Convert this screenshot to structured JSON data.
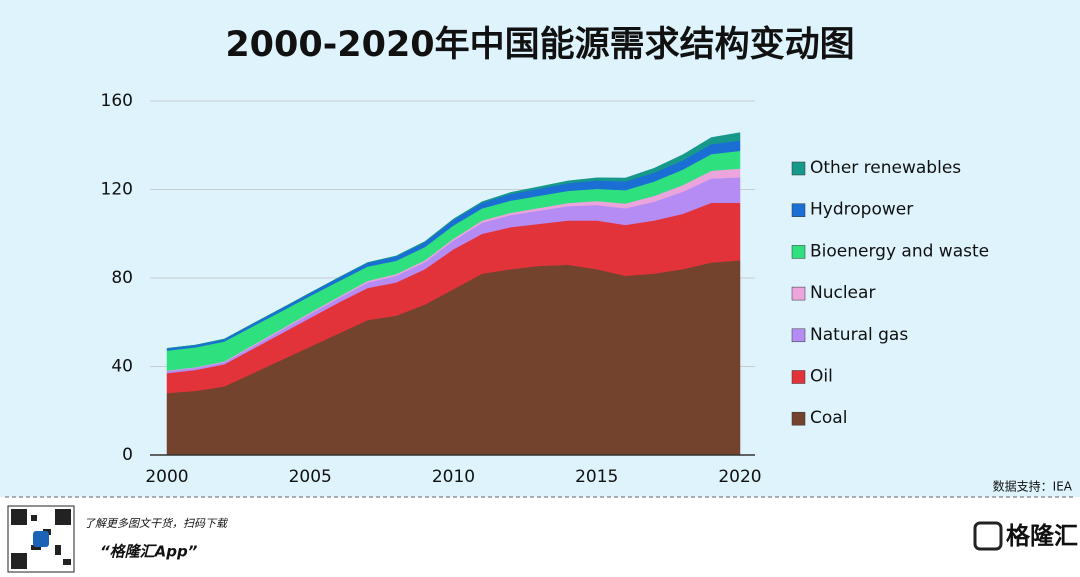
{
  "chart_data": {
    "type": "stacked-area",
    "title": "2000-2020年中国能源需求结构变动图",
    "x": [
      2000,
      2001,
      2002,
      2003,
      2004,
      2005,
      2006,
      2007,
      2008,
      2009,
      2010,
      2011,
      2012,
      2013,
      2014,
      2015,
      2016,
      2017,
      2018,
      2019,
      2020
    ],
    "xlim": [
      2000,
      2020
    ],
    "xticks": [
      2000,
      2005,
      2010,
      2015,
      2020
    ],
    "ylim": [
      0,
      160
    ],
    "yticks": [
      0,
      40,
      80,
      120,
      160
    ],
    "grid": true,
    "legend": "right",
    "series": [
      {
        "name": "Coal",
        "color": "#74432d",
        "values": [
          28,
          29,
          31,
          37,
          43,
          49,
          55,
          61,
          63,
          68,
          75,
          82,
          84,
          85.5,
          86,
          84,
          81,
          82,
          84,
          87,
          88
        ]
      },
      {
        "name": "Oil",
        "color": "#e2323a",
        "values": [
          9,
          9.5,
          10,
          11,
          12,
          13,
          14,
          14.5,
          15,
          16,
          18,
          18,
          19,
          19,
          20,
          22,
          23,
          24,
          25,
          27,
          26
        ]
      },
      {
        "name": "Natural gas",
        "color": "#b58cf4",
        "values": [
          1,
          1,
          1,
          1.2,
          1.5,
          1.8,
          2,
          2.5,
          3,
          3.2,
          4,
          5,
          5.5,
          6,
          6.5,
          7,
          7.5,
          8.5,
          10,
          11,
          11.5
        ]
      },
      {
        "name": "Nuclear",
        "color": "#eba4dc",
        "values": [
          0.2,
          0.2,
          0.3,
          0.5,
          0.5,
          0.6,
          0.6,
          0.7,
          0.8,
          0.8,
          0.8,
          1,
          1,
          1.2,
          1.4,
          1.8,
          2.2,
          2.6,
          3,
          3.5,
          4
        ]
      },
      {
        "name": "Bioenergy and waste",
        "color": "#2fe07e",
        "values": [
          9,
          9,
          9,
          8.5,
          8,
          7.5,
          7,
          6.5,
          6,
          6,
          6,
          5.5,
          5.5,
          5.5,
          5.5,
          5.5,
          6,
          6.5,
          7,
          7.5,
          8
        ]
      },
      {
        "name": "Hydropower",
        "color": "#1b6fd4",
        "values": [
          1,
          1,
          1.1,
          1.2,
          1.3,
          1.4,
          1.6,
          1.7,
          2,
          2.2,
          2.5,
          2.5,
          3,
          3.2,
          3.5,
          3.8,
          4,
          4,
          4.2,
          4.5,
          4.7
        ]
      },
      {
        "name": "Other renewables",
        "color": "#16998b",
        "values": [
          0,
          0,
          0,
          0,
          0,
          0,
          0.1,
          0.1,
          0.2,
          0.3,
          0.4,
          0.5,
          0.7,
          0.9,
          1,
          1.2,
          1.5,
          2,
          2.5,
          3,
          3.5
        ]
      }
    ],
    "source": "数据支持：IEA"
  },
  "footer": {
    "promo": "了解更多图文干货，扫码下载",
    "app": "“格隆汇App”",
    "logo": "格隆汇"
  }
}
